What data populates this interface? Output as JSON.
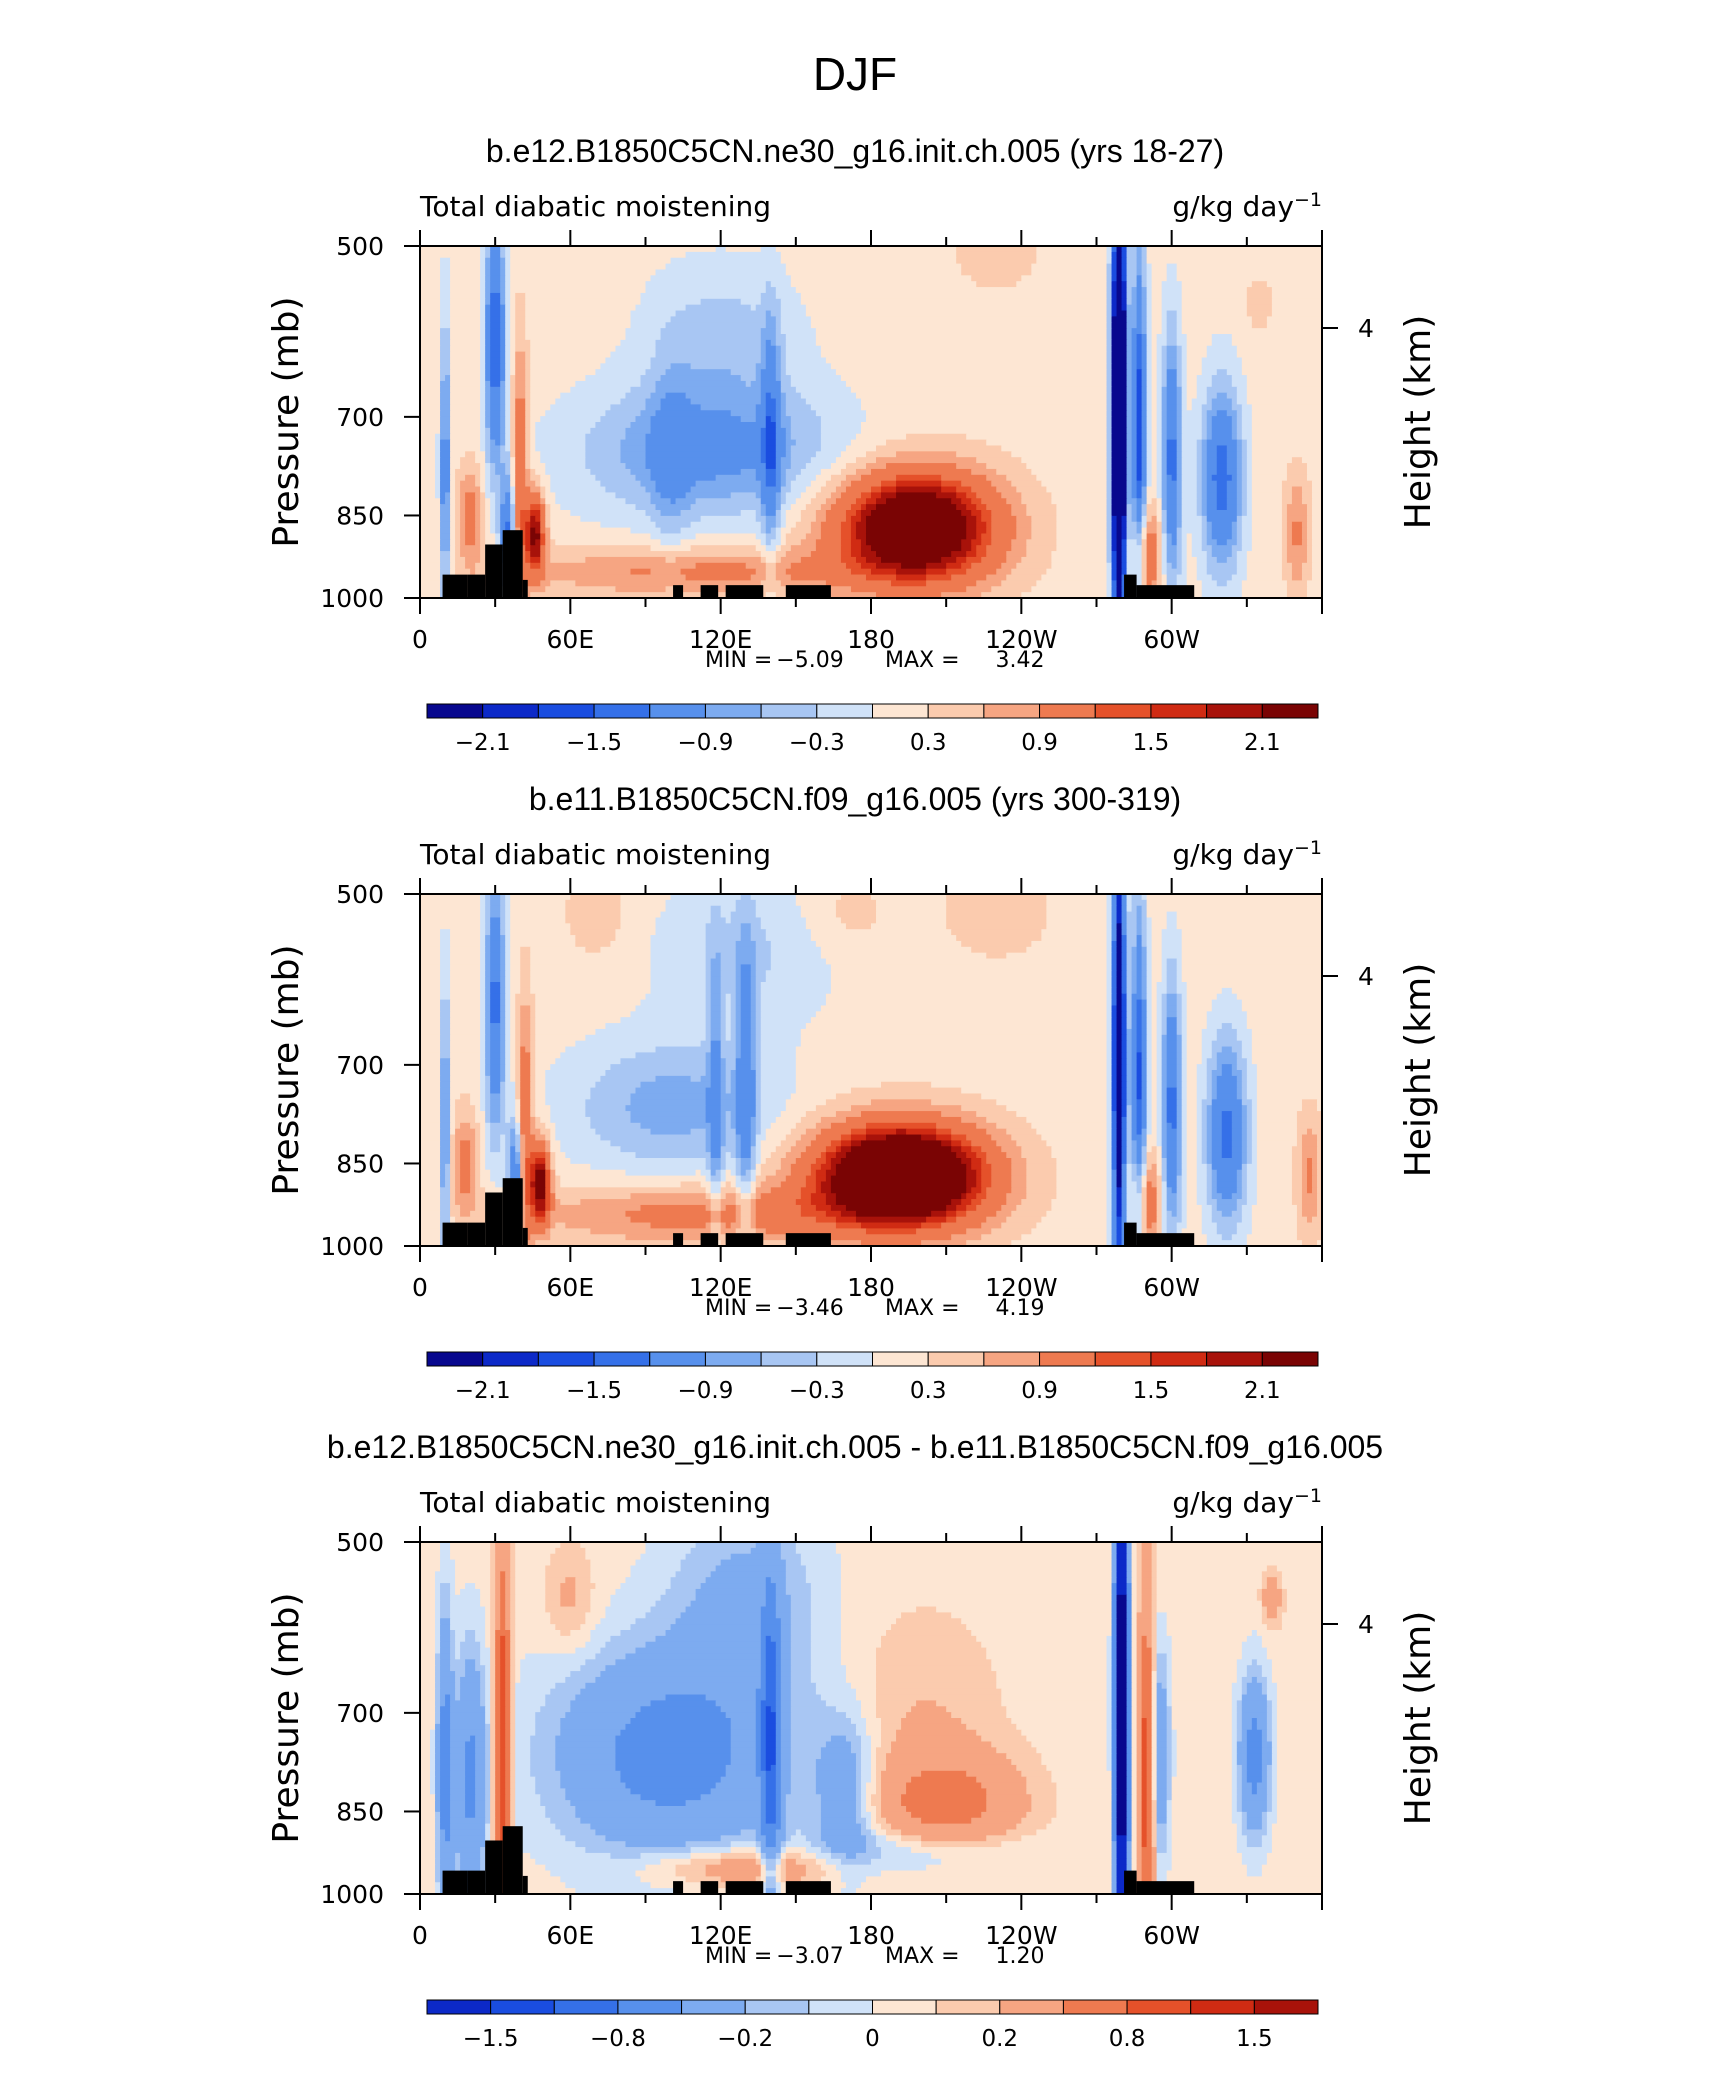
{
  "figure": {
    "season_title": "DJF",
    "colors": {
      "blues": [
        "#08088e",
        "#0c29c8",
        "#1a4de0",
        "#3570e8",
        "#5790ec",
        "#7dabf0",
        "#a8c6f3",
        "#d0e2f8"
      ],
      "reds": [
        "#fde6d3",
        "#fbcbae",
        "#f6a582",
        "#ee7a50",
        "#e5512a",
        "#d02b13",
        "#a8120a",
        "#7a0404"
      ],
      "land": "#000000"
    }
  },
  "chart_data": [
    {
      "type": "heatmap",
      "title": "b.e12.B1850C5CN.ne30_g16.init.ch.005 (yrs 18-27)",
      "subtitle_left": "Total diabatic moistening",
      "units": "g/kg day",
      "units_exp": "−1",
      "xlabel": "",
      "ylabel": "Pressure (mb)",
      "y2label": "Height (km)",
      "x_ticks": [
        "0",
        "60E",
        "120E",
        "180",
        "120W",
        "60W"
      ],
      "x_range": [
        0,
        360
      ],
      "y_ticks": [
        "500",
        "700",
        "850",
        "1000"
      ],
      "y_range_mb": [
        1000,
        500
      ],
      "y2_ticks": [
        "4"
      ],
      "stats": {
        "min_label": "MIN =",
        "min": "−5.09",
        "max_label": "MAX =",
        "max": "3.42"
      },
      "colorbar_labels": [
        "−2.1",
        "−1.5",
        "−0.9",
        "−0.3",
        "0.3",
        "0.9",
        "1.5",
        "2.1"
      ],
      "features": [
        {
          "lon": 198,
          "p": 870,
          "value": 3.42
        },
        {
          "lon": 279,
          "p": 700,
          "value": -5.09
        },
        {
          "lon": 30,
          "p": 620,
          "value": -2.0
        },
        {
          "lon": 48,
          "p": 870,
          "value": 2.4
        },
        {
          "lon": 110,
          "p": 760,
          "value": -1.4
        },
        {
          "lon": 328,
          "p": 790,
          "value": -1.6
        }
      ]
    },
    {
      "type": "heatmap",
      "title": "b.e11.B1850C5CN.f09_g16.005 (yrs 300-319)",
      "subtitle_left": "Total diabatic moistening",
      "units": "g/kg day",
      "units_exp": "−1",
      "xlabel": "",
      "ylabel": "Pressure (mb)",
      "y2label": "Height (km)",
      "x_ticks": [
        "0",
        "60E",
        "120E",
        "180",
        "120W",
        "60W"
      ],
      "x_range": [
        0,
        360
      ],
      "y_ticks": [
        "500",
        "700",
        "850",
        "1000"
      ],
      "y_range_mb": [
        1000,
        500
      ],
      "y2_ticks": [
        "4"
      ],
      "stats": {
        "min_label": "MIN =",
        "min": "−3.46",
        "max_label": "MAX =",
        "max": "4.19"
      },
      "colorbar_labels": [
        "−2.1",
        "−1.5",
        "−0.9",
        "−0.3",
        "0.3",
        "0.9",
        "1.5",
        "2.1"
      ],
      "features": [
        {
          "lon": 190,
          "p": 870,
          "value": 4.19
        },
        {
          "lon": 279,
          "p": 700,
          "value": -3.46
        },
        {
          "lon": 30,
          "p": 620,
          "value": -1.8
        },
        {
          "lon": 48,
          "p": 880,
          "value": 2.5
        },
        {
          "lon": 80,
          "p": 760,
          "value": -1.0
        },
        {
          "lon": 328,
          "p": 800,
          "value": -1.5
        }
      ]
    },
    {
      "type": "heatmap",
      "title": "b.e12.B1850C5CN.ne30_g16.init.ch.005 - b.e11.B1850C5CN.f09_g16.005",
      "subtitle_left": "Total diabatic moistening",
      "units": "g/kg day",
      "units_exp": "−1",
      "xlabel": "",
      "ylabel": "Pressure (mb)",
      "y2label": "Height (km)",
      "x_ticks": [
        "0",
        "60E",
        "120E",
        "180",
        "120W",
        "60W"
      ],
      "x_range": [
        0,
        360
      ],
      "y_ticks": [
        "500",
        "700",
        "850",
        "1000"
      ],
      "y_range_mb": [
        1000,
        500
      ],
      "y2_ticks": [
        "4"
      ],
      "stats": {
        "min_label": "MIN =",
        "min": "−3.07",
        "max_label": "MAX =",
        "max": "1.20"
      },
      "colorbar_labels": [
        "−1.5",
        "−0.8",
        "−0.2",
        "0",
        "0.2",
        "0.8",
        "1.5"
      ],
      "features": [
        {
          "lon": 210,
          "p": 840,
          "value": 0.8
        },
        {
          "lon": 280,
          "p": 700,
          "value": -3.07
        },
        {
          "lon": 32,
          "p": 750,
          "value": 1.2
        },
        {
          "lon": 110,
          "p": 760,
          "value": -0.7
        },
        {
          "lon": 328,
          "p": 780,
          "value": -0.6
        },
        {
          "lon": 290,
          "p": 820,
          "value": 1.0
        }
      ]
    }
  ]
}
